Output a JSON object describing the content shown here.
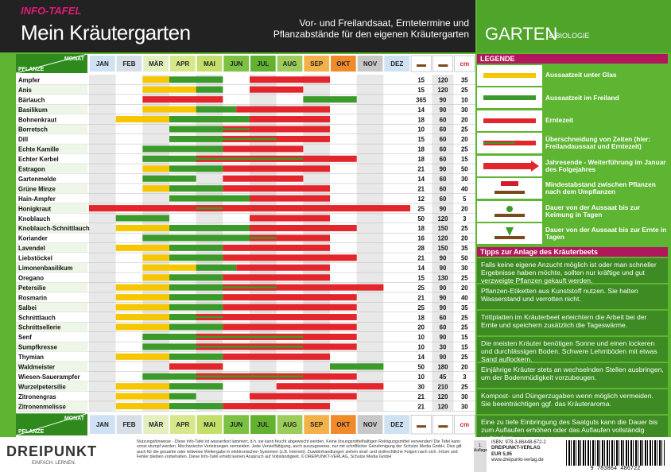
{
  "header": {
    "series": "INFO-TAFEL",
    "title": "Mein Kräutergarten",
    "subtitle": "Vor- und Freilandsaat, Erntetermine und Pflanzabstände für den eigenen Kräutergarten",
    "brand": "GARTEN",
    "brand_sub": "& BIOLOGIE"
  },
  "table": {
    "month_label": "MONAT",
    "plant_label": "PFLANZE",
    "unit_label": "cm",
    "months": [
      "JAN",
      "FEB",
      "MÄR",
      "APR",
      "MAI",
      "JUN",
      "JUL",
      "AUG",
      "SEP",
      "OKT",
      "NOV",
      "DEZ"
    ],
    "plants": [
      {
        "name": "Ampfer",
        "keim": 15,
        "ernte": 120,
        "abstand": 35,
        "glass": [
          2,
          3
        ],
        "outdoor": [
          3,
          5
        ],
        "harvest": [
          6,
          9
        ]
      },
      {
        "name": "Anis",
        "keim": 15,
        "ernte": 120,
        "abstand": 25,
        "glass": [
          2,
          4
        ],
        "outdoor": [
          4,
          5
        ],
        "harvest": [
          6,
          8
        ]
      },
      {
        "name": "Bärlauch",
        "keim": 365,
        "ernte": 90,
        "abstand": 10,
        "glass": null,
        "outdoor": [
          8,
          10
        ],
        "harvest": [
          2,
          5
        ]
      },
      {
        "name": "Basilikum",
        "keim": 14,
        "ernte": 90,
        "abstand": 30,
        "glass": [
          2,
          4
        ],
        "outdoor": [
          4,
          5.5
        ],
        "harvest": [
          5.5,
          9
        ]
      },
      {
        "name": "Bohnenkraut",
        "keim": 18,
        "ernte": 60,
        "abstand": 20,
        "glass": [
          1,
          3
        ],
        "outdoor": [
          3,
          6
        ],
        "harvest": [
          6,
          9
        ]
      },
      {
        "name": "Borretsch",
        "keim": 10,
        "ernte": 60,
        "abstand": 25,
        "glass": null,
        "outdoor": [
          3,
          6
        ],
        "harvest": [
          5,
          9
        ]
      },
      {
        "name": "Dill",
        "keim": 15,
        "ernte": 60,
        "abstand": 20,
        "glass": null,
        "outdoor": [
          3,
          7
        ],
        "harvest": [
          5,
          9
        ]
      },
      {
        "name": "Echte Kamille",
        "keim": 18,
        "ernte": 60,
        "abstand": 25,
        "glass": null,
        "outdoor": [
          2,
          5
        ],
        "harvest": [
          5,
          8
        ]
      },
      {
        "name": "Echter Kerbel",
        "keim": 18,
        "ernte": 60,
        "abstand": 15,
        "glass": null,
        "outdoor": [
          2,
          8
        ],
        "harvest": [
          4,
          10
        ]
      },
      {
        "name": "Estragon",
        "keim": 21,
        "ernte": 90,
        "abstand": 50,
        "glass": [
          2,
          3
        ],
        "outdoor": [
          3,
          5
        ],
        "harvest": [
          5,
          9
        ]
      },
      {
        "name": "Gartenmelde",
        "keim": 14,
        "ernte": 60,
        "abstand": 30,
        "glass": null,
        "outdoor": [
          2,
          4
        ],
        "harvest": [
          5,
          8
        ]
      },
      {
        "name": "Grüne Minze",
        "keim": 21,
        "ernte": 60,
        "abstand": 40,
        "glass": [
          2,
          3
        ],
        "outdoor": [
          3,
          5
        ],
        "harvest": [
          5,
          9
        ]
      },
      {
        "name": "Hain-Ampfer",
        "keim": 12,
        "ernte": 60,
        "abstand": 5,
        "glass": null,
        "outdoor": [
          3,
          6
        ],
        "harvest": [
          6,
          9
        ]
      },
      {
        "name": "Honigkraut",
        "keim": 25,
        "ernte": 90,
        "abstand": 20,
        "glass": null,
        "outdoor": [
          4,
          5
        ],
        "harvest": [
          0,
          12
        ]
      },
      {
        "name": "Knoblauch",
        "keim": 50,
        "ernte": 120,
        "abstand": 3,
        "glass": null,
        "outdoor": [
          1,
          3
        ],
        "harvest": [
          6,
          9
        ]
      },
      {
        "name": "Knoblauch-Schnittlauch",
        "keim": 18,
        "ernte": 150,
        "abstand": 25,
        "glass": [
          1,
          3
        ],
        "outdoor": [
          3,
          6
        ],
        "harvest": [
          6,
          10
        ]
      },
      {
        "name": "Koriander",
        "keim": 16,
        "ernte": 120,
        "abstand": 20,
        "glass": null,
        "outdoor": [
          2,
          7
        ],
        "harvest": [
          6,
          9
        ]
      },
      {
        "name": "Lavendel",
        "keim": 28,
        "ernte": 150,
        "abstand": 35,
        "glass": [
          1,
          3
        ],
        "outdoor": [
          3,
          5
        ],
        "harvest": [
          5,
          9
        ]
      },
      {
        "name": "Liebstöckel",
        "keim": 21,
        "ernte": 90,
        "abstand": 50,
        "glass": [
          2,
          3
        ],
        "outdoor": [
          3,
          5
        ],
        "harvest": [
          5,
          10
        ]
      },
      {
        "name": "Limonenbasilikum",
        "keim": 14,
        "ernte": 90,
        "abstand": 30,
        "glass": [
          2,
          4
        ],
        "outdoor": [
          4,
          5.5
        ],
        "harvest": [
          5.5,
          9
        ]
      },
      {
        "name": "Oregano",
        "keim": 15,
        "ernte": 130,
        "abstand": 25,
        "glass": [
          2,
          3
        ],
        "outdoor": [
          3,
          5
        ],
        "harvest": [
          5,
          9
        ]
      },
      {
        "name": "Petersilie",
        "keim": 25,
        "ernte": 90,
        "abstand": 20,
        "glass": [
          1,
          3
        ],
        "outdoor": [
          3,
          7
        ],
        "harvest": [
          5,
          11
        ]
      },
      {
        "name": "Rosmarin",
        "keim": 21,
        "ernte": 90,
        "abstand": 40,
        "glass": [
          1,
          3
        ],
        "outdoor": [
          3,
          5
        ],
        "harvest": [
          5,
          10
        ]
      },
      {
        "name": "Salbei",
        "keim": 25,
        "ernte": 90,
        "abstand": 35,
        "glass": [
          1,
          3
        ],
        "outdoor": [
          3,
          5
        ],
        "harvest": [
          5,
          10
        ]
      },
      {
        "name": "Schnittlauch",
        "keim": 18,
        "ernte": 60,
        "abstand": 25,
        "glass": [
          1,
          3
        ],
        "outdoor": [
          3,
          5
        ],
        "harvest": [
          4,
          10
        ]
      },
      {
        "name": "Schnittsellerie",
        "keim": 20,
        "ernte": 60,
        "abstand": 25,
        "glass": [
          1,
          3
        ],
        "outdoor": [
          3,
          5
        ],
        "harvest": [
          5,
          10
        ]
      },
      {
        "name": "Senf",
        "keim": 10,
        "ernte": 90,
        "abstand": 15,
        "glass": null,
        "outdoor": [
          2,
          8
        ],
        "harvest": [
          4,
          10
        ]
      },
      {
        "name": "Sumpfkresse",
        "keim": 10,
        "ernte": 30,
        "abstand": 15,
        "glass": null,
        "outdoor": [
          2,
          8
        ],
        "harvest": [
          4,
          10
        ]
      },
      {
        "name": "Thymian",
        "keim": 14,
        "ernte": 90,
        "abstand": 25,
        "glass": [
          1,
          3
        ],
        "outdoor": [
          3,
          5
        ],
        "harvest": [
          5,
          9
        ]
      },
      {
        "name": "Waldmeister",
        "keim": 50,
        "ernte": 180,
        "abstand": 20,
        "glass": null,
        "outdoor": [
          9,
          11
        ],
        "harvest": [
          3,
          5
        ]
      },
      {
        "name": "Wiesen-Sauerampfer",
        "keim": 10,
        "ernte": 45,
        "abstand": 3,
        "glass": null,
        "outdoor": [
          2,
          8
        ],
        "harvest": [
          4,
          10
        ]
      },
      {
        "name": "Wurzelpetersilie",
        "keim": 30,
        "ernte": 210,
        "abstand": 25,
        "glass": [
          1,
          3
        ],
        "outdoor": [
          3,
          5
        ],
        "harvest": [
          7,
          11
        ]
      },
      {
        "name": "Zitronengras",
        "keim": 21,
        "ernte": 120,
        "abstand": 30,
        "glass": [
          1,
          3
        ],
        "outdoor": [
          3,
          4
        ],
        "harvest": [
          6,
          10
        ]
      },
      {
        "name": "Zitronenmelisse",
        "keim": 21,
        "ernte": 120,
        "abstand": 30,
        "glass": [
          1,
          3
        ],
        "outdoor": [
          3,
          5
        ],
        "harvest": [
          5,
          9
        ]
      }
    ]
  },
  "legend": {
    "title": "LEGENDE",
    "items": [
      "Aussaatzeit unter Glas",
      "Aussaatzeit im Freiland",
      "Erntezeit",
      "Überschneidung von Zeiten (hier: Freilandaussaat und Erntezeit)",
      "Jahresende - Weiterführung im Januar des Folgejahres",
      "Mindestabstand zwischen Pflanzen nach dem Umpflanzen",
      "Dauer von der Aussaat bis zur Keimung in Tagen",
      "Dauer von der Aussaat bis zur Ernte in Tagen"
    ]
  },
  "tips": {
    "title": "Tipps zur Anlage des Kräuterbeets",
    "items": [
      "Falls keine eigene Anzucht möglich ist oder man schneller Ergebnisse haben möchte, sollten nur kräftige und gut verzweigte Pflanzen gekauft werden.",
      "Pflanzen-Etiketten aus Kunststoff nutzen. Sie halten Wasserstand und verrotten nicht.",
      "Trittplatten im Kräuterbeet erleichtern die Arbeit bei der Ernte und speichern zusätzlich die Tageswärme.",
      "Die meisten Kräuter benötigen Sonne und einen lockeren und durchlässigen Boden. Schwere Lehmböden mit etwas Sand auflockern.",
      "Einjährige Kräuter stets an wechselnden Stellen ausbringen, um der Bodenmüdigkeit vorzubeugen.",
      "Kompost- und Düngerzugaben wenn möglich vermeiden. Sie beeinträchtigen ggf. das Kräuteraroma.",
      "Eine zu tiefe Einbringung des Saatguts kann die Dauer bis zum Auflaufen erhöhen oder das Auflaufen vollständig verhindern."
    ]
  },
  "footer": {
    "logo": "DREIPUNKT",
    "slogan": "EINFACH. LERNEN.",
    "notice": "Nutzungshinweise - Diese Info-Tafel ist wasserfest laminiert, d.h. sie kann feucht abgewischt werden. Keine lösungsmittelhaltigen Reinigungsmittel verwenden! Die Tafel kann sonst stumpf werden. Mechanische Verletzungen vermeiden. Jede Vervielfältigung, auch auszugsweise, nur mit schriftlicher Genehmigung der Schulze Media GmbH. Dies gilt auch für die gesamte oder teilweise Weitergabe in elektronischen Systemen (z.B. Internet). Zuwiderhandlungen ziehen straf- und zivilrechtliche Folgen nach sich. Irrtum und Fehler bleiben vorbehalten. Diese Info-Tafel erhebt keinen Anspruch auf Vollständigkeit. © DREIPUNKT-VERLAG, Schulze Media GmbH",
    "edition": "1. Auflage",
    "isbn": "ISBN: 978-3-86448-672-2",
    "publisher": "DREIPUNKT-VERLAG",
    "price": "EUR 5,95",
    "web": "www.dreipunkt-verlag.de",
    "barcode": "9 783864 486722"
  }
}
